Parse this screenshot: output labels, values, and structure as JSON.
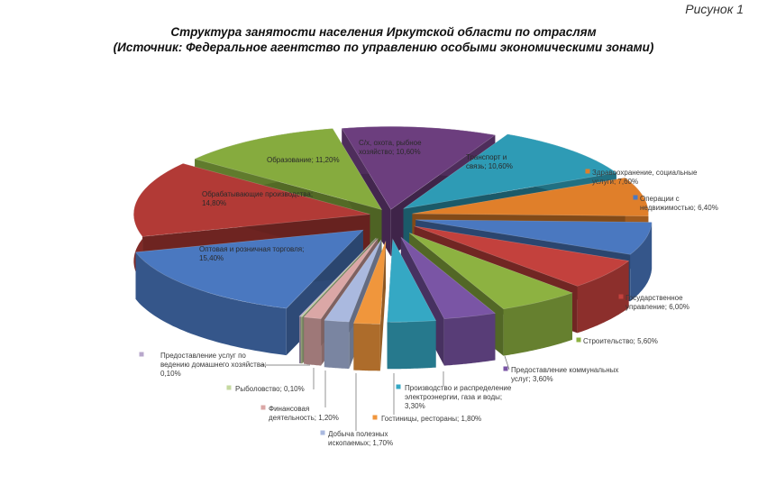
{
  "figure_label": "Рисунок 1",
  "title_line1": "Структура занятости населения Иркутской области по отраслям",
  "title_line2": "(Источник: Федеральное агентство по управлению особыми экономическими зонами)",
  "chart_data": {
    "type": "pie",
    "title": "Структура занятости населения Иркутской области по отраслям",
    "subtitle": "(Источник: Федеральное агентство по управлению особыми экономическими зонами)",
    "exploded": true,
    "three_d": true,
    "legend": "none",
    "slices": [
      {
        "label": "С/х, охота, рыбное хозяйство",
        "value": 10.6,
        "color": "#6c3e7e",
        "text_lines": [
          "С/х, охота, рыбное",
          "хозяйство; 10,60%"
        ]
      },
      {
        "label": "Транспорт и связь",
        "value": 10.6,
        "color": "#2e9bb5",
        "text_lines": [
          "Транспорт и",
          "связь; 10,60%"
        ]
      },
      {
        "label": "Здравоохранение, социальные услуги",
        "value": 7.6,
        "color": "#e07f2a",
        "text_lines": [
          "Здравоохранение, социальные",
          "услуги; 7,60%"
        ]
      },
      {
        "label": "Операции с недвижимостью",
        "value": 6.4,
        "color": "#4a78c0",
        "text_lines": [
          "Операции с",
          "недвижимостью; 6,40%"
        ]
      },
      {
        "label": "Государственное управление",
        "value": 6.0,
        "color": "#c3413d",
        "text_lines": [
          "Государственное",
          "управление; 6,00%"
        ]
      },
      {
        "label": "Строительство",
        "value": 5.6,
        "color": "#8db241",
        "text_lines": [
          "Строительство; 5,60%"
        ]
      },
      {
        "label": "Предоставление коммунальных услуг",
        "value": 3.6,
        "color": "#7a55a5",
        "text_lines": [
          "Предоставление коммунальных",
          "услуг; 3,60%"
        ]
      },
      {
        "label": "Производство и распределение электроэнергии, газа и воды",
        "value": 3.3,
        "color": "#35a8c4",
        "text_lines": [
          "Производство и распределение",
          "электроэнергии, газа и воды;",
          "3,30%"
        ]
      },
      {
        "label": "Гостиницы, рестораны",
        "value": 1.8,
        "color": "#f0963c",
        "text_lines": [
          "Гостиницы, рестораны; 1,80%"
        ]
      },
      {
        "label": "Добыча полезных ископаемых",
        "value": 1.7,
        "color": "#aab9df",
        "text_lines": [
          "Добыча полезных",
          "ископаемых; 1,70%"
        ]
      },
      {
        "label": "Финансовая деятельность",
        "value": 1.2,
        "color": "#dba7a6",
        "text_lines": [
          "Финансовая",
          "деятельность; 1,20%"
        ]
      },
      {
        "label": "Рыболовство",
        "value": 0.1,
        "color": "#c5d9a0",
        "text_lines": [
          "Рыболовство; 0,10%"
        ]
      },
      {
        "label": "Предоставление услуг по ведению домашнего хозяйства",
        "value": 0.1,
        "color": "#b8a8cc",
        "text_lines": [
          "Предоставление услуг по",
          "ведению домашнего хозяйства;",
          "0,10%"
        ]
      },
      {
        "label": "Оптовая и розничная торговля",
        "value": 15.4,
        "color": "#4a78c0",
        "text_lines": [
          "Оптовая и розничная торговля;",
          "15,40%"
        ]
      },
      {
        "label": "Обрабатывающие производства",
        "value": 14.8,
        "color": "#b23a36",
        "text_lines": [
          "Обрабатывающие производства;",
          "14,80%"
        ]
      },
      {
        "label": "Образование",
        "value": 11.2,
        "color": "#86ab3e",
        "text_lines": [
          "Образование; 11,20%"
        ]
      }
    ]
  }
}
